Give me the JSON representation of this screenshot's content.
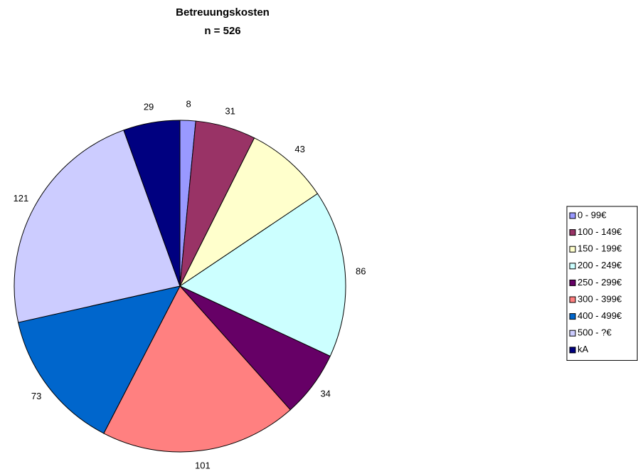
{
  "chart_data": {
    "type": "pie",
    "title": "Betreuungskosten",
    "subtitle": "n = 526",
    "categories": [
      "0 - 99€",
      "100 - 149€",
      "150 - 199€",
      "200 - 249€",
      "250 - 299€",
      "300 - 399€",
      "400 - 499€",
      "500 - ?€",
      "kA"
    ],
    "values": [
      8,
      31,
      43,
      86,
      34,
      101,
      73,
      121,
      29
    ],
    "colors": [
      "#9999ff",
      "#993366",
      "#ffffcc",
      "#ccffff",
      "#660066",
      "#ff8080",
      "#0066cc",
      "#ccccff",
      "#000080"
    ],
    "legend": "right"
  }
}
